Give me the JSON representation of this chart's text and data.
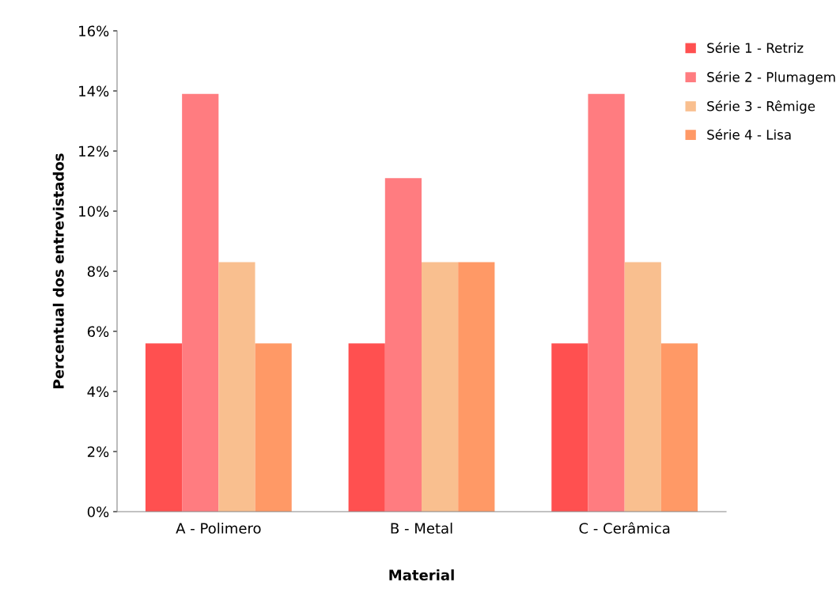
{
  "chart_data": {
    "type": "bar",
    "xlabel": "Material",
    "ylabel": "Percentual dos entrevistados",
    "categories": [
      "A - Polimero",
      "B - Metal",
      "C - Cerâmica"
    ],
    "series": [
      {
        "name": "Série 1 - Retriz",
        "color": "#ff5050",
        "values": [
          5.6,
          5.6,
          5.6
        ]
      },
      {
        "name": "Série 2 - Plumagem",
        "color": "#ff7c80",
        "values": [
          13.9,
          11.1,
          13.9
        ]
      },
      {
        "name": "Série 3 - Rêmige",
        "color": "#f9bf8f",
        "values": [
          8.3,
          8.3,
          8.3
        ]
      },
      {
        "name": "Série 4 - Lisa",
        "color": "#ff9966",
        "values": [
          5.6,
          8.3,
          5.6
        ]
      }
    ],
    "ylim": [
      0,
      16
    ],
    "yticks": [
      {
        "value": 0,
        "label": "0%"
      },
      {
        "value": 2,
        "label": "2%"
      },
      {
        "value": 4,
        "label": "4%"
      },
      {
        "value": 6,
        "label": "6%"
      },
      {
        "value": 8,
        "label": "8%"
      },
      {
        "value": 10,
        "label": "10%"
      },
      {
        "value": 12,
        "label": "12%"
      },
      {
        "value": 14,
        "label": "14%"
      },
      {
        "value": 16,
        "label": "16%"
      }
    ],
    "grid": false,
    "legend": "top right"
  }
}
